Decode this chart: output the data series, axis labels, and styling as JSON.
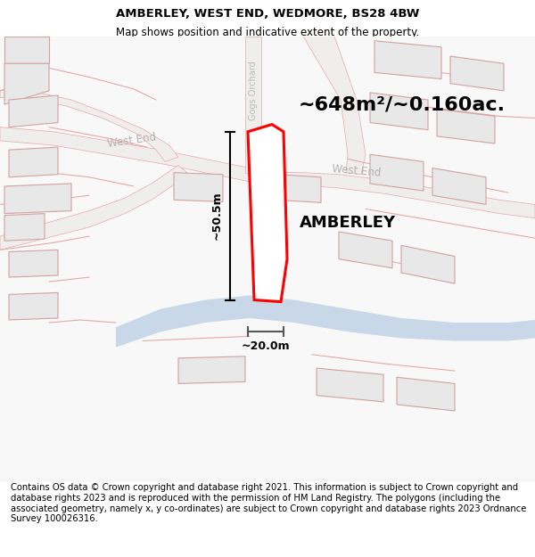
{
  "title": "AMBERLEY, WEST END, WEDMORE, BS28 4BW",
  "subtitle": "Map shows position and indicative extent of the property.",
  "footer": "Contains OS data © Crown copyright and database right 2021. This information is subject to Crown copyright and database rights 2023 and is reproduced with the permission of HM Land Registry. The polygons (including the associated geometry, namely x, y co-ordinates) are subject to Crown copyright and database rights 2023 Ordnance Survey 100026316.",
  "area_label": "~648m²/~0.160ac.",
  "property_label": "AMBERLEY",
  "dim_width": "~20.0m",
  "dim_height": "~50.5m",
  "title_fontsize": 9.5,
  "subtitle_fontsize": 8.5,
  "footer_fontsize": 7.2,
  "area_fontsize": 16,
  "prop_fontsize": 13,
  "dim_fontsize": 9,
  "street_fontsize": 8.5,
  "gog_fontsize": 7,
  "bg_color": "#f8f8f8",
  "building_fill": "#e8e8e8",
  "building_edge": "#d4a0a0",
  "road_fill": "#f0eded",
  "road_edge": "#e8a8a8",
  "water_fill": "#c8d8e8",
  "red_color": "#ff0000",
  "street_color": "#b8b0b0",
  "gog_color": "#c0b8b8"
}
